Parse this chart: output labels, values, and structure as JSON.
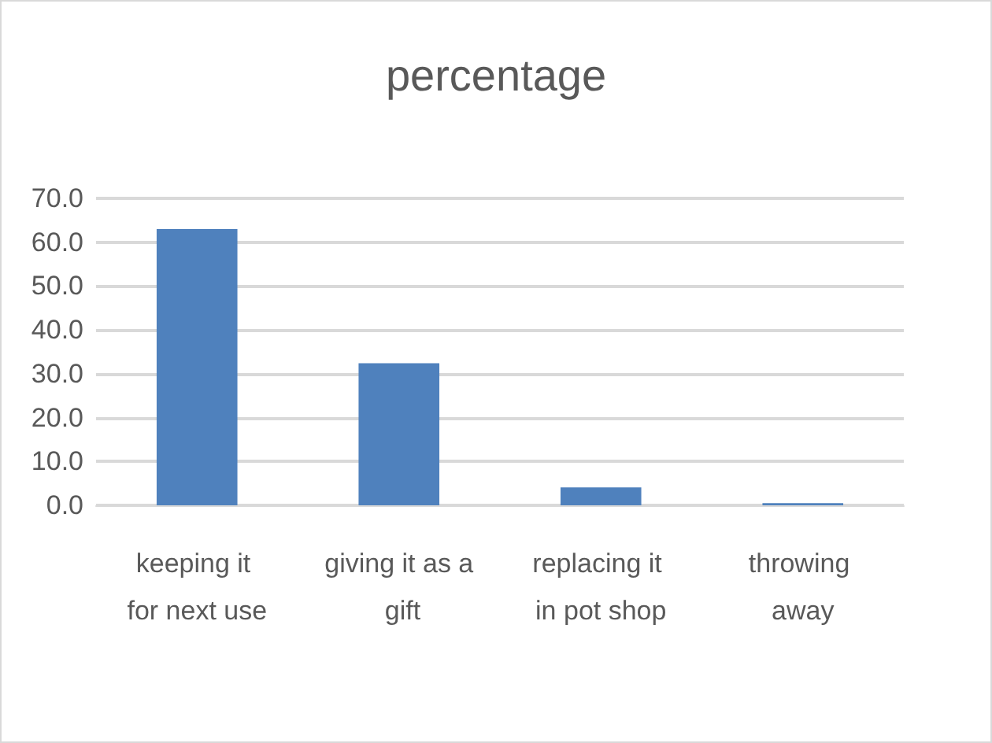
{
  "chart_data": {
    "type": "bar",
    "title": "percentage",
    "categories": [
      "keeping it for next use",
      "giving it as a gift",
      "replacing it in pot shop",
      "throwing away"
    ],
    "values": [
      63.0,
      32.4,
      4.1,
      0.5
    ],
    "color": "#4f81bd",
    "ylim": [
      0,
      70
    ],
    "yticks": [
      {
        "value": 0,
        "label": "0.0"
      },
      {
        "value": 10,
        "label": "10.0"
      },
      {
        "value": 20,
        "label": "20.0"
      },
      {
        "value": 30,
        "label": "30.0"
      },
      {
        "value": 40,
        "label": "40.0"
      },
      {
        "value": 50,
        "label": "50.0"
      },
      {
        "value": 60,
        "label": "60.0"
      },
      {
        "value": 70,
        "label": "70.0"
      }
    ],
    "grid": true
  }
}
